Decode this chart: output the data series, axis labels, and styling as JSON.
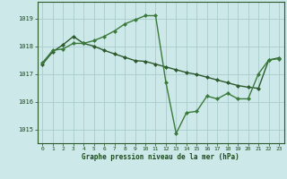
{
  "title": "Graphe pression niveau de la mer (hPa)",
  "background_color": "#cce8e8",
  "grid_color": "#aacccc",
  "line_color_dark": "#2d5a2d",
  "line_color_bright": "#3a7a3a",
  "xlim": [
    -0.5,
    23.5
  ],
  "ylim": [
    1014.5,
    1019.6
  ],
  "yticks": [
    1015,
    1016,
    1017,
    1018,
    1019
  ],
  "xticks": [
    0,
    1,
    2,
    3,
    4,
    5,
    6,
    7,
    8,
    9,
    10,
    11,
    12,
    13,
    14,
    15,
    16,
    17,
    18,
    19,
    20,
    21,
    22,
    23
  ],
  "series1_x": [
    0,
    1,
    2,
    3,
    4,
    5,
    6,
    7,
    8,
    9,
    10,
    11,
    12,
    13,
    14,
    15,
    16,
    17,
    18,
    19,
    20,
    21,
    22,
    23
  ],
  "series1_y": [
    1017.4,
    1017.85,
    1017.9,
    1018.1,
    1018.1,
    1018.2,
    1018.35,
    1018.55,
    1018.8,
    1018.95,
    1019.1,
    1019.1,
    1016.7,
    1014.85,
    1015.6,
    1015.65,
    1016.2,
    1016.1,
    1016.3,
    1016.1,
    1016.1,
    1017.0,
    1017.5,
    1017.55
  ],
  "series2_x": [
    0,
    1,
    2,
    3,
    4,
    5,
    6,
    7,
    8,
    9,
    10,
    11,
    12,
    13,
    14,
    15,
    16,
    17,
    18,
    19,
    20,
    21,
    22,
    23
  ],
  "series2_y": [
    1017.35,
    1017.8,
    1018.05,
    1018.35,
    1018.1,
    1018.0,
    1017.85,
    1017.72,
    1017.6,
    1017.48,
    1017.45,
    1017.35,
    1017.25,
    1017.15,
    1017.05,
    1016.98,
    1016.88,
    1016.78,
    1016.68,
    1016.58,
    1016.52,
    1016.48,
    1017.5,
    1017.58
  ]
}
